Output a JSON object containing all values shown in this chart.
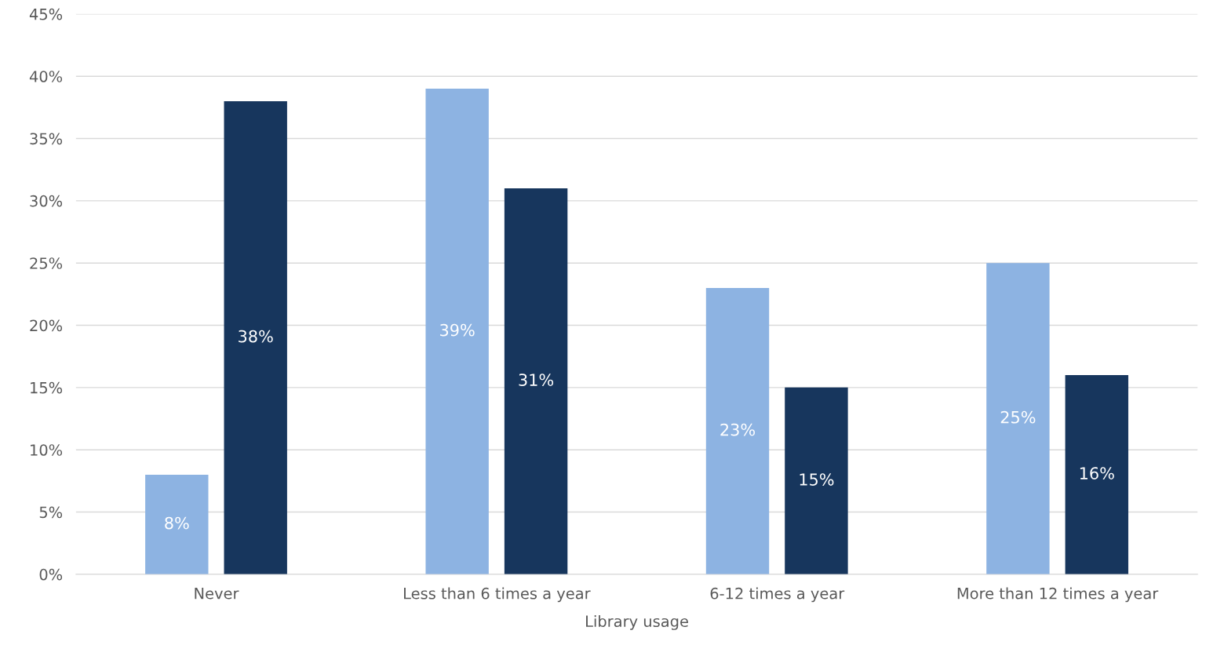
{
  "chart_data": {
    "type": "bar",
    "xlabel": "Library usage",
    "categories": [
      "Never",
      "Less than 6 times a year",
      "6-12 times a year",
      "More than 12 times a year"
    ],
    "series": [
      {
        "color": "#8db3e2",
        "values": [
          8,
          39,
          23,
          25
        ],
        "value_labels": [
          "8%",
          "39%",
          "23%",
          "25%"
        ]
      },
      {
        "color": "#17365d",
        "values": [
          38,
          31,
          15,
          16
        ],
        "value_labels": [
          "38%",
          "31%",
          "15%",
          "16%"
        ]
      }
    ],
    "ylim": [
      0,
      45
    ],
    "yticks": [
      {
        "value": 0,
        "label": "0%"
      },
      {
        "value": 5,
        "label": "5%"
      },
      {
        "value": 10,
        "label": "10%"
      },
      {
        "value": 15,
        "label": "15%"
      },
      {
        "value": 20,
        "label": "20%"
      },
      {
        "value": 25,
        "label": "25%"
      },
      {
        "value": 30,
        "label": "30%"
      },
      {
        "value": 35,
        "label": "35%"
      },
      {
        "value": 40,
        "label": "40%"
      },
      {
        "value": 45,
        "label": "45%"
      }
    ],
    "grid": "y",
    "legend": false
  }
}
